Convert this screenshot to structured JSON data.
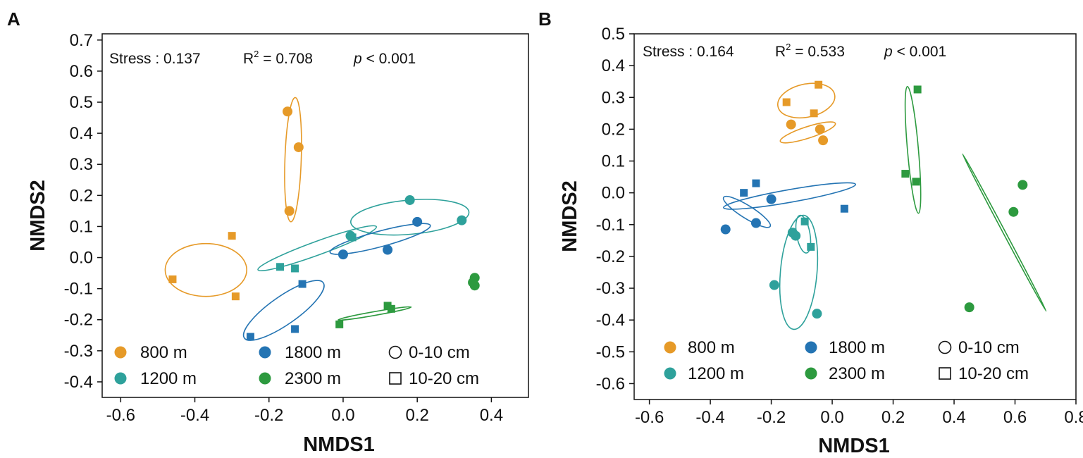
{
  "colors": {
    "800 m": "#E69A28",
    "1200 m": "#2EA19B",
    "1800 m": "#2474B3",
    "2300 m": "#2D9A3F"
  },
  "legend": {
    "elevations": [
      "800 m",
      "1200 m",
      "1800 m",
      "2300 m"
    ],
    "depths": [
      {
        "label": "0-10 cm",
        "marker": "circle"
      },
      {
        "label": "10-20 cm",
        "marker": "square"
      }
    ]
  },
  "chart_data": [
    {
      "panel": "A",
      "type": "scatter",
      "xlabel": "NMDS1",
      "ylabel": "NMDS2",
      "xlim": [
        -0.65,
        0.5
      ],
      "ylim": [
        -0.45,
        0.72
      ],
      "xticks": [
        "-0.6",
        "-0.4",
        "-0.2",
        "0.0",
        "0.2",
        "0.4"
      ],
      "yticks": [
        "0.7",
        "0.6",
        "0.5",
        "0.4",
        "0.3",
        "0.2",
        "0.1",
        "0.0",
        "-0.1",
        "-0.2",
        "-0.3",
        "-0.4"
      ],
      "annotation": {
        "stress": "Stress : 0.137",
        "r2_prefix": "R",
        "r2_value": " = 0.708",
        "p_symbol": "p",
        "p_value": " < 0.001"
      },
      "points": [
        {
          "group": "800 m",
          "depth": "0-10 cm",
          "x": -0.15,
          "y": 0.47
        },
        {
          "group": "800 m",
          "depth": "0-10 cm",
          "x": -0.12,
          "y": 0.355
        },
        {
          "group": "800 m",
          "depth": "0-10 cm",
          "x": -0.145,
          "y": 0.15
        },
        {
          "group": "800 m",
          "depth": "10-20 cm",
          "x": -0.3,
          "y": 0.07
        },
        {
          "group": "800 m",
          "depth": "10-20 cm",
          "x": -0.46,
          "y": -0.07
        },
        {
          "group": "800 m",
          "depth": "10-20 cm",
          "x": -0.29,
          "y": -0.125
        },
        {
          "group": "1200 m",
          "depth": "0-10 cm",
          "x": 0.18,
          "y": 0.185
        },
        {
          "group": "1200 m",
          "depth": "0-10 cm",
          "x": 0.32,
          "y": 0.12
        },
        {
          "group": "1200 m",
          "depth": "0-10 cm",
          "x": 0.02,
          "y": 0.07
        },
        {
          "group": "1200 m",
          "depth": "10-20 cm",
          "x": 0.025,
          "y": 0.065
        },
        {
          "group": "1200 m",
          "depth": "10-20 cm",
          "x": -0.17,
          "y": -0.03
        },
        {
          "group": "1200 m",
          "depth": "10-20 cm",
          "x": -0.13,
          "y": -0.035
        },
        {
          "group": "1800 m",
          "depth": "0-10 cm",
          "x": 0.2,
          "y": 0.115
        },
        {
          "group": "1800 m",
          "depth": "0-10 cm",
          "x": 0.12,
          "y": 0.025
        },
        {
          "group": "1800 m",
          "depth": "0-10 cm",
          "x": 0.0,
          "y": 0.01
        },
        {
          "group": "1800 m",
          "depth": "10-20 cm",
          "x": -0.11,
          "y": -0.085
        },
        {
          "group": "1800 m",
          "depth": "10-20 cm",
          "x": -0.13,
          "y": -0.23
        },
        {
          "group": "1800 m",
          "depth": "10-20 cm",
          "x": -0.25,
          "y": -0.255
        },
        {
          "group": "2300 m",
          "depth": "0-10 cm",
          "x": 0.355,
          "y": -0.065
        },
        {
          "group": "2300 m",
          "depth": "0-10 cm",
          "x": 0.35,
          "y": -0.08
        },
        {
          "group": "2300 m",
          "depth": "0-10 cm",
          "x": 0.355,
          "y": -0.09
        },
        {
          "group": "2300 m",
          "depth": "10-20 cm",
          "x": -0.01,
          "y": -0.215
        },
        {
          "group": "2300 m",
          "depth": "10-20 cm",
          "x": 0.12,
          "y": -0.155
        },
        {
          "group": "2300 m",
          "depth": "10-20 cm",
          "x": 0.13,
          "y": -0.165
        }
      ],
      "ellipses": [
        {
          "group": "800 m",
          "cx": -0.135,
          "cy": 0.315,
          "rx": 0.022,
          "ry": 0.2,
          "angle": -2
        },
        {
          "group": "800 m",
          "cx": -0.37,
          "cy": -0.04,
          "rx": 0.11,
          "ry": 0.085,
          "angle": 0
        },
        {
          "group": "1200 m",
          "cx": 0.18,
          "cy": 0.13,
          "rx": 0.16,
          "ry": 0.055,
          "angle": 5
        },
        {
          "group": "1200 m",
          "cx": -0.07,
          "cy": 0.03,
          "rx": 0.17,
          "ry": 0.022,
          "angle": 20
        },
        {
          "group": "1800 m",
          "cx": 0.1,
          "cy": 0.06,
          "rx": 0.14,
          "ry": 0.025,
          "angle": 15
        },
        {
          "group": "1800 m",
          "cx": -0.16,
          "cy": -0.17,
          "rx": 0.13,
          "ry": 0.045,
          "angle": 35
        },
        {
          "group": "2300 m",
          "cx": 0.085,
          "cy": -0.18,
          "rx": 0.1,
          "ry": 0.006,
          "angle": 10
        }
      ]
    },
    {
      "panel": "B",
      "type": "scatter",
      "xlabel": "NMDS1",
      "ylabel": "NMDS2",
      "xlim": [
        -0.65,
        0.8
      ],
      "ylim": [
        -0.65,
        0.5
      ],
      "xticks": [
        "-0.6",
        "-0.4",
        "-0.2",
        "0.0",
        "0.2",
        "0.4",
        "0.6",
        "0.8"
      ],
      "yticks": [
        "0.5",
        "0.4",
        "0.3",
        "0.2",
        "0.1",
        "0.0",
        "-0.1",
        "-0.2",
        "-0.3",
        "-0.4",
        "-0.5",
        "-0.6"
      ],
      "annotation": {
        "stress": "Stress : 0.164",
        "r2_prefix": "R",
        "r2_value": " = 0.533",
        "p_symbol": "p",
        "p_value": " < 0.001"
      },
      "points": [
        {
          "group": "800 m",
          "depth": "0-10 cm",
          "x": -0.135,
          "y": 0.215
        },
        {
          "group": "800 m",
          "depth": "0-10 cm",
          "x": -0.04,
          "y": 0.2
        },
        {
          "group": "800 m",
          "depth": "0-10 cm",
          "x": -0.03,
          "y": 0.165
        },
        {
          "group": "800 m",
          "depth": "10-20 cm",
          "x": -0.045,
          "y": 0.34
        },
        {
          "group": "800 m",
          "depth": "10-20 cm",
          "x": -0.15,
          "y": 0.285
        },
        {
          "group": "800 m",
          "depth": "10-20 cm",
          "x": -0.06,
          "y": 0.25
        },
        {
          "group": "1200 m",
          "depth": "0-10 cm",
          "x": -0.13,
          "y": -0.125
        },
        {
          "group": "1200 m",
          "depth": "0-10 cm",
          "x": -0.19,
          "y": -0.29
        },
        {
          "group": "1200 m",
          "depth": "0-10 cm",
          "x": -0.05,
          "y": -0.38
        },
        {
          "group": "1200 m",
          "depth": "0-10 cm",
          "x": -0.12,
          "y": -0.135
        },
        {
          "group": "1200 m",
          "depth": "10-20 cm",
          "x": -0.09,
          "y": -0.09
        },
        {
          "group": "1200 m",
          "depth": "10-20 cm",
          "x": -0.07,
          "y": -0.17
        },
        {
          "group": "1800 m",
          "depth": "0-10 cm",
          "x": -0.2,
          "y": -0.02
        },
        {
          "group": "1800 m",
          "depth": "0-10 cm",
          "x": -0.25,
          "y": -0.095
        },
        {
          "group": "1800 m",
          "depth": "0-10 cm",
          "x": -0.35,
          "y": -0.115
        },
        {
          "group": "1800 m",
          "depth": "10-20 cm",
          "x": -0.25,
          "y": 0.03
        },
        {
          "group": "1800 m",
          "depth": "10-20 cm",
          "x": -0.29,
          "y": 0.0
        },
        {
          "group": "1800 m",
          "depth": "10-20 cm",
          "x": 0.04,
          "y": -0.05
        },
        {
          "group": "2300 m",
          "depth": "0-10 cm",
          "x": 0.625,
          "y": 0.025
        },
        {
          "group": "2300 m",
          "depth": "0-10 cm",
          "x": 0.595,
          "y": -0.06
        },
        {
          "group": "2300 m",
          "depth": "0-10 cm",
          "x": 0.45,
          "y": -0.36
        },
        {
          "group": "2300 m",
          "depth": "10-20 cm",
          "x": 0.28,
          "y": 0.325
        },
        {
          "group": "2300 m",
          "depth": "10-20 cm",
          "x": 0.24,
          "y": 0.06
        },
        {
          "group": "2300 m",
          "depth": "10-20 cm",
          "x": 0.275,
          "y": 0.035
        }
      ],
      "ellipses": [
        {
          "group": "800 m",
          "cx": -0.085,
          "cy": 0.29,
          "rx": 0.095,
          "ry": 0.052,
          "angle": 12
        },
        {
          "group": "800 m",
          "cx": -0.08,
          "cy": 0.19,
          "rx": 0.095,
          "ry": 0.018,
          "angle": 18
        },
        {
          "group": "1200 m",
          "cx": -0.11,
          "cy": -0.25,
          "rx": 0.06,
          "ry": 0.18,
          "angle": -5
        },
        {
          "group": "1200 m",
          "cx": -0.095,
          "cy": -0.13,
          "rx": 0.022,
          "ry": 0.06,
          "angle": 10
        },
        {
          "group": "1800 m",
          "cx": -0.14,
          "cy": -0.01,
          "rx": 0.22,
          "ry": 0.02,
          "angle": 10
        },
        {
          "group": "1800 m",
          "cx": -0.28,
          "cy": -0.06,
          "rx": 0.09,
          "ry": 0.02,
          "angle": -32
        },
        {
          "group": "2300 m",
          "cx": 0.265,
          "cy": 0.135,
          "rx": 0.018,
          "ry": 0.2,
          "angle": 5
        },
        {
          "group": "2300 m",
          "cx": 0.565,
          "cy": -0.125,
          "rx": 0.004,
          "ry": 0.28,
          "angle": 28
        }
      ]
    }
  ]
}
